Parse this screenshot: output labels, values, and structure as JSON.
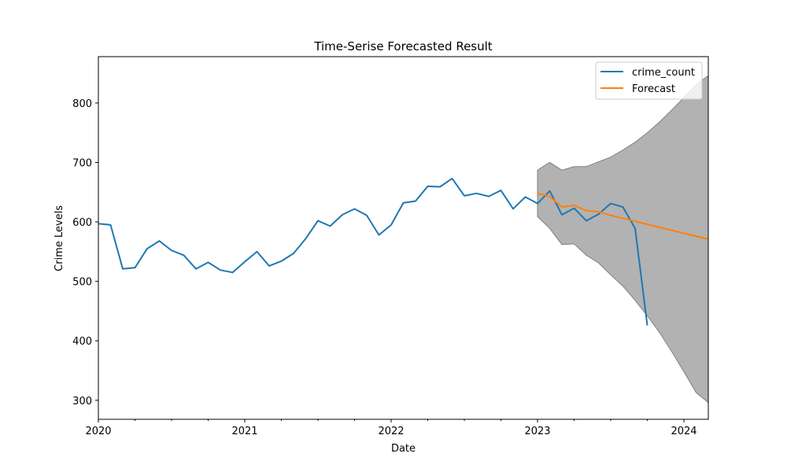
{
  "chart_data": {
    "type": "line",
    "title": "Time-Serise Forecasted Result",
    "xlabel": "Date",
    "ylabel": "Crime Levels",
    "xlim": [
      "2020-01",
      "2024-03"
    ],
    "ylim": [
      268,
      878
    ],
    "x_ticks": [
      {
        "date": "2020-01",
        "label": "2020"
      },
      {
        "date": "2021-01",
        "label": "2021"
      },
      {
        "date": "2022-01",
        "label": "2022"
      },
      {
        "date": "2023-01",
        "label": "2023"
      },
      {
        "date": "2024-01",
        "label": "2024"
      }
    ],
    "x_minor_ticks": [
      "2020-04",
      "2020-07",
      "2020-10",
      "2021-04",
      "2021-07",
      "2021-10",
      "2022-04",
      "2022-07",
      "2022-10",
      "2023-04",
      "2023-07",
      "2023-10"
    ],
    "y_ticks": [
      300,
      400,
      500,
      600,
      700,
      800
    ],
    "grid": false,
    "legend": {
      "position": "top-right",
      "entries": [
        "crime_count",
        "Forecast"
      ]
    },
    "colors": {
      "crime_count": "#1f77b4",
      "forecast": "#ff7f0e",
      "confidence_band": "#b2b2b2",
      "confidence_edge": "#808080"
    },
    "series": [
      {
        "name": "crime_count",
        "x": [
          "2020-01",
          "2020-02",
          "2020-03",
          "2020-04",
          "2020-05",
          "2020-06",
          "2020-07",
          "2020-08",
          "2020-09",
          "2020-10",
          "2020-11",
          "2020-12",
          "2021-01",
          "2021-02",
          "2021-03",
          "2021-04",
          "2021-05",
          "2021-06",
          "2021-07",
          "2021-08",
          "2021-09",
          "2021-10",
          "2021-11",
          "2021-12",
          "2022-01",
          "2022-02",
          "2022-03",
          "2022-04",
          "2022-05",
          "2022-06",
          "2022-07",
          "2022-08",
          "2022-09",
          "2022-10",
          "2022-11",
          "2022-12",
          "2023-01",
          "2023-02",
          "2023-03",
          "2023-04",
          "2023-05",
          "2023-06",
          "2023-07",
          "2023-08",
          "2023-09",
          "2023-10"
        ],
        "values": [
          597,
          595,
          521,
          523,
          555,
          568,
          552,
          544,
          521,
          532,
          519,
          515,
          533,
          550,
          526,
          534,
          547,
          572,
          602,
          593,
          612,
          622,
          611,
          578,
          595,
          632,
          635,
          660,
          659,
          673,
          644,
          648,
          643,
          653,
          622,
          642,
          631,
          652,
          612,
          623,
          602,
          613,
          631,
          625,
          589,
          426
        ]
      },
      {
        "name": "Forecast",
        "x": [
          "2023-01",
          "2023-02",
          "2023-03",
          "2023-04",
          "2023-05",
          "2023-06",
          "2023-07",
          "2023-08",
          "2023-09",
          "2023-10",
          "2023-11",
          "2023-12",
          "2024-01",
          "2024-02",
          "2024-03"
        ],
        "values": [
          648,
          643,
          625,
          628,
          619,
          617,
          611,
          606,
          601,
          596,
          591,
          586,
          581,
          576,
          571
        ]
      }
    ],
    "confidence_interval": {
      "x": [
        "2023-01",
        "2023-02",
        "2023-03",
        "2023-04",
        "2023-05",
        "2023-06",
        "2023-07",
        "2023-08",
        "2023-09",
        "2023-10",
        "2023-11",
        "2023-12",
        "2024-01",
        "2024-02",
        "2024-03"
      ],
      "upper": [
        687,
        700,
        687,
        693,
        693,
        701,
        709,
        721,
        734,
        750,
        768,
        788,
        809,
        831,
        846
      ],
      "lower": [
        609,
        589,
        562,
        563,
        544,
        531,
        511,
        492,
        468,
        442,
        414,
        382,
        348,
        313,
        296
      ]
    }
  }
}
